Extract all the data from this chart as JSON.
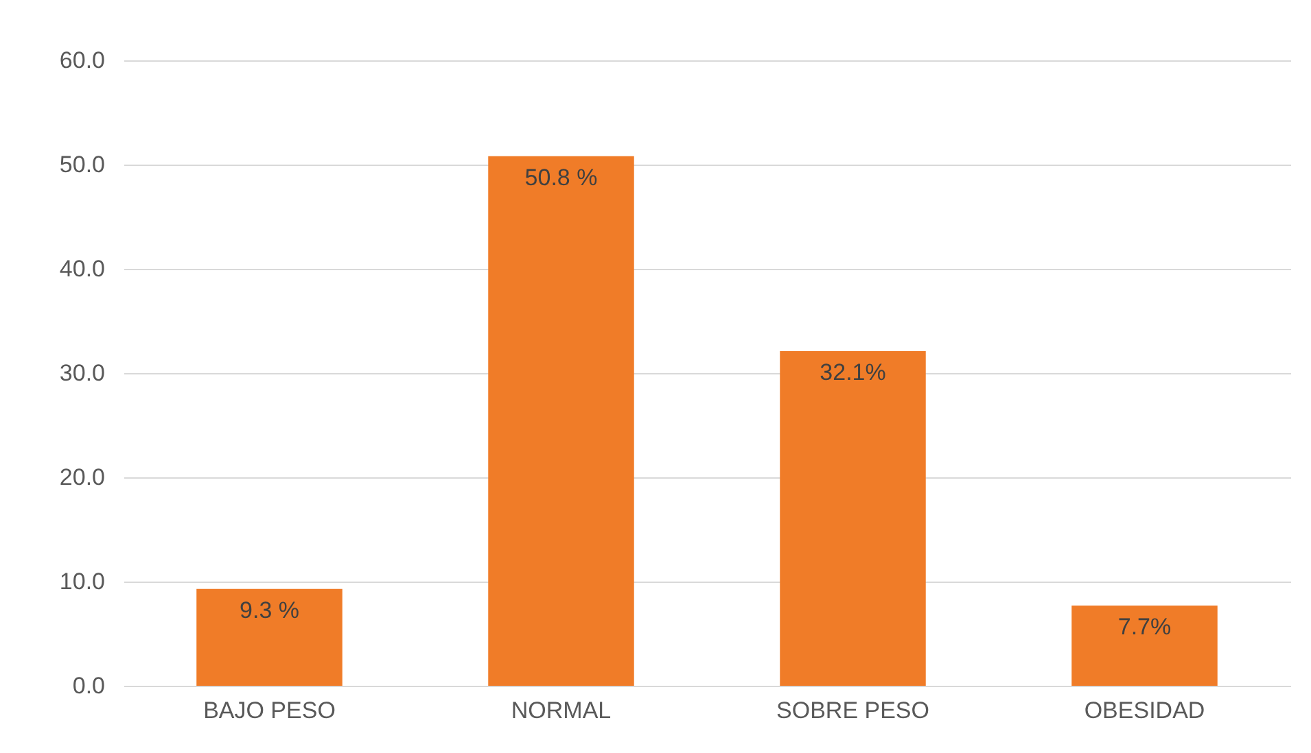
{
  "chart_data": {
    "type": "bar",
    "categories": [
      "BAJO PESO",
      "NORMAL",
      "SOBRE PESO",
      "OBESIDAD"
    ],
    "values": [
      9.3,
      50.8,
      32.1,
      7.7
    ],
    "value_labels": [
      "9.3 %",
      "50.8 %",
      "32.1%",
      "7.7%"
    ],
    "color": "#f07c28",
    "ylim": [
      0,
      60
    ],
    "yticks": [
      {
        "value": 0,
        "label": "0.0"
      },
      {
        "value": 10,
        "label": "10.0"
      },
      {
        "value": 20,
        "label": "20.0"
      },
      {
        "value": 30,
        "label": "30.0"
      },
      {
        "value": 40,
        "label": "40.0"
      },
      {
        "value": 50,
        "label": "50.0"
      },
      {
        "value": 60,
        "label": "60.0"
      }
    ],
    "grid": "y"
  }
}
